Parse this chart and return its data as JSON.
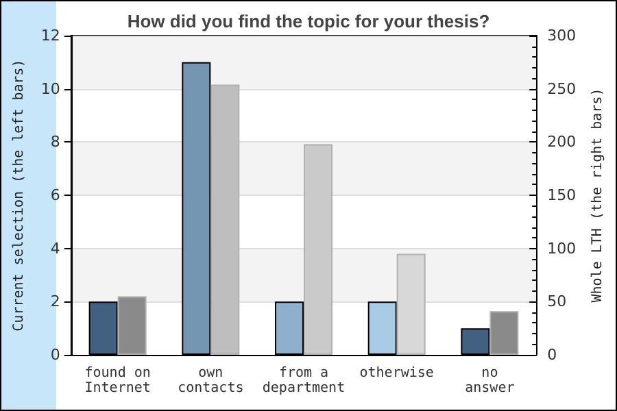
{
  "chart_data": {
    "type": "bar",
    "title": "How did you find the topic for your thesis?",
    "ylabel": "Current selection (the left bars)",
    "y2label": "Whole LTH (the right bars)",
    "categories": [
      "found on\nInternet",
      "own\ncontacts",
      "from a\ndepartment",
      "otherwise",
      "no\nanswer"
    ],
    "series": [
      {
        "colors": [
          "#426080",
          "#7496b2",
          "#8fb0cc",
          "#aacbe6",
          "#426080"
        ],
        "values": [
          2,
          11,
          2,
          2,
          1
        ]
      },
      {
        "colors": [
          "#8a8a8a",
          "#bebebe",
          "#cacaca",
          "#d8d8d8",
          "#8a8a8a"
        ],
        "values": [
          55,
          254,
          198,
          95,
          41
        ],
        "axis": "y2"
      }
    ],
    "ylim": [
      0,
      12
    ],
    "yticks": [
      0,
      2,
      4,
      6,
      8,
      10,
      12
    ],
    "y2lim": [
      0,
      300
    ],
    "y2ticks": [
      0,
      50,
      100,
      150,
      200,
      250,
      300
    ],
    "grid": "y"
  }
}
